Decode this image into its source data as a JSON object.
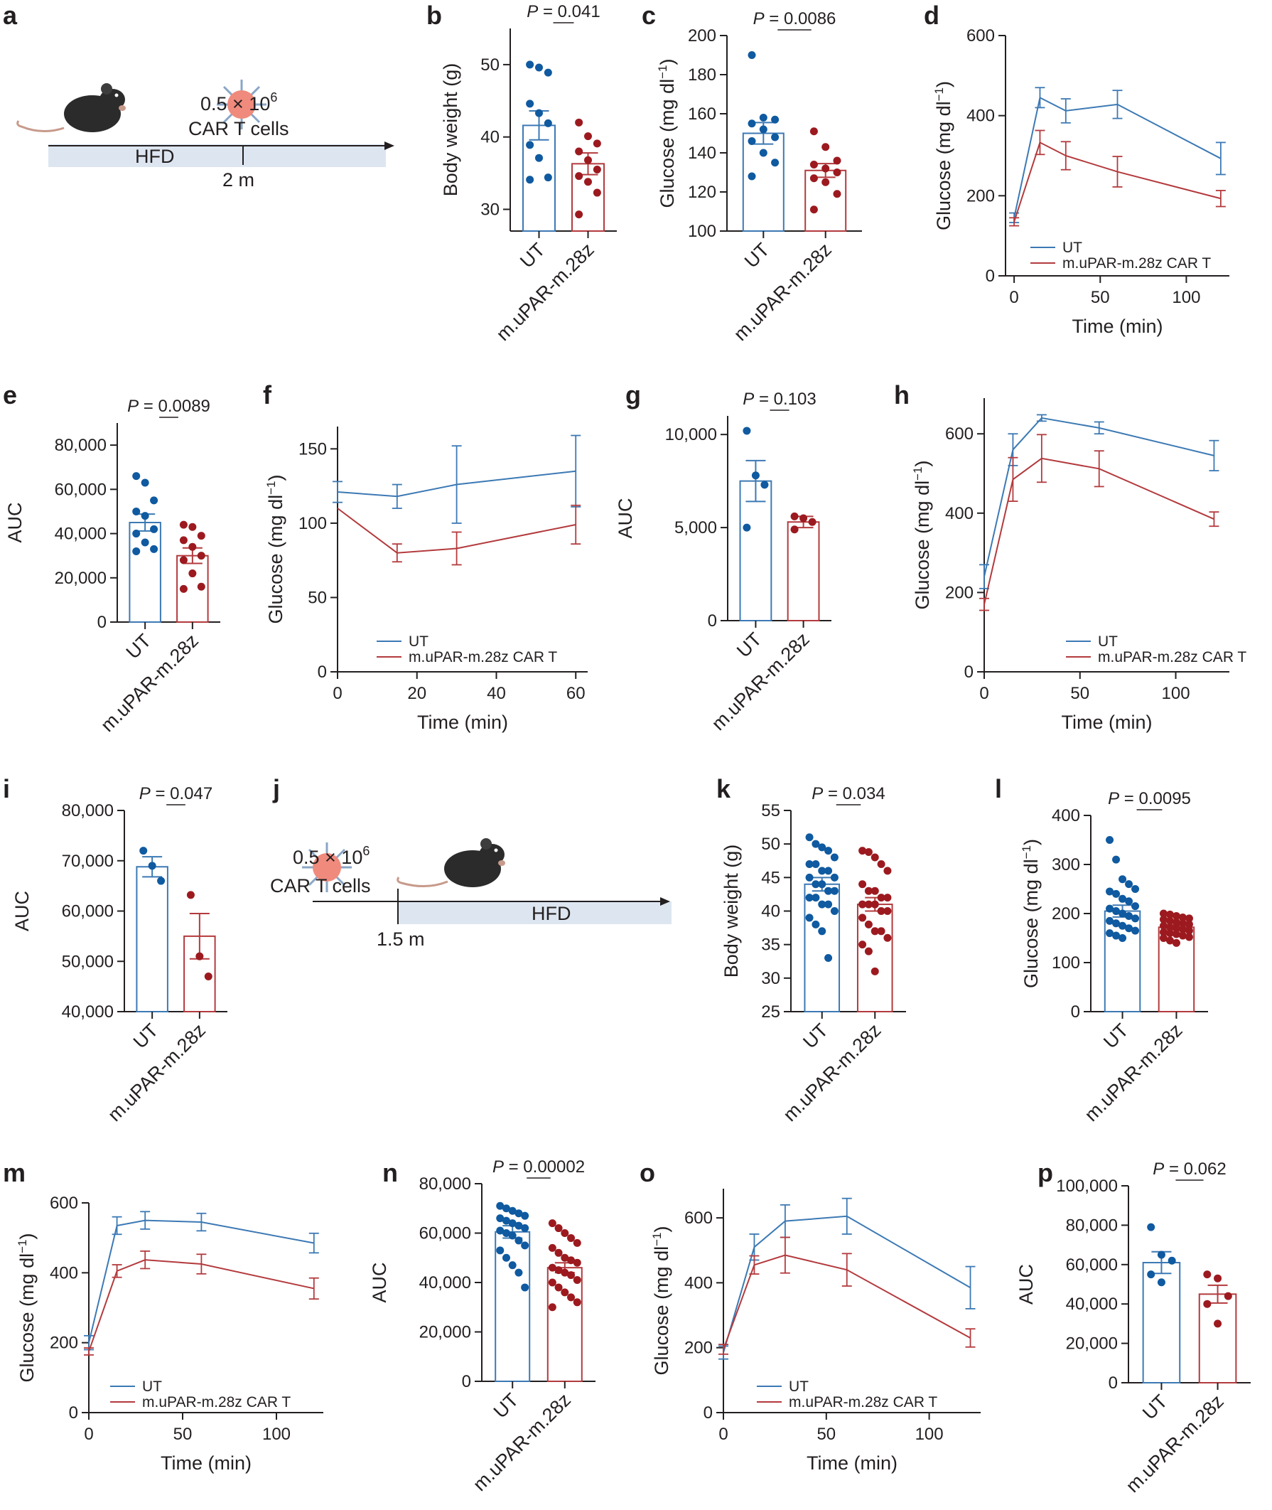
{
  "colors": {
    "ut": "#3c79b4",
    "car": "#b33a3d",
    "ut_dot": "#0f5aa0",
    "car_dot": "#9c1a1f",
    "hfd_bar": "#dde6f0",
    "cell": "#ef8a7c",
    "mouse": "#2b2b2b"
  },
  "icons": {
    "mouse": "mouse-icon",
    "car_t_cell": "car-t-cell-icon"
  },
  "schematic_a": {
    "panel": "a",
    "dose_main": "0.5 × 10",
    "dose_exp": "6",
    "cells": "CAR T cells",
    "hfd": "HFD",
    "time": "2 m"
  },
  "schematic_j": {
    "panel": "j",
    "dose_main": "0.5 × 10",
    "dose_exp": "6",
    "cells": "CAR T cells",
    "hfd": "HFD",
    "time": "1.5 m"
  },
  "chart_data": [
    {
      "id": "b",
      "panel": "b",
      "type": "bar",
      "ylabel": "Body weight (g)",
      "categories": [
        "UT",
        "m.uPAR-m.28z"
      ],
      "ylim": [
        27,
        55
      ],
      "yticks": [
        "30",
        "40",
        "50"
      ],
      "ytickvals": [
        30,
        40,
        50
      ],
      "series": [
        {
          "mean": 41.6,
          "sem": 2.0,
          "points": [
            50,
            49.6,
            48.9,
            44.6,
            43.3,
            41.9,
            38.9,
            37.1,
            34.4,
            34.1
          ]
        },
        {
          "mean": 36.3,
          "sem": 1.5,
          "points": [
            42.0,
            40.1,
            39.1,
            38.0,
            36.8,
            35.5,
            34.6,
            33.8,
            32.3,
            29.3
          ]
        }
      ],
      "p": "P = 0.041"
    },
    {
      "id": "c",
      "panel": "c",
      "type": "bar",
      "ylabel": "Glucose (mg dl⁻¹)",
      "categories": [
        "UT",
        "m.uPAR-m.28z"
      ],
      "ylim": [
        100,
        200
      ],
      "yticks": [
        "100",
        "120",
        "140",
        "160",
        "180",
        "200"
      ],
      "ytickvals": [
        100,
        120,
        140,
        160,
        180,
        200
      ],
      "series": [
        {
          "mean": 150,
          "sem": 5.5,
          "points": [
            190,
            158,
            157,
            155,
            152,
            148,
            146,
            140,
            135,
            128
          ]
        },
        {
          "mean": 131,
          "sem": 3.5,
          "points": [
            151,
            143,
            136,
            134,
            132,
            130,
            127,
            125,
            119,
            111
          ]
        }
      ],
      "p": "P = 0.0086"
    },
    {
      "id": "d",
      "panel": "d",
      "type": "line",
      "xlabel": "Time (min)",
      "ylabel": "Glucose (mg dl⁻¹)",
      "xlim": [
        -5,
        125
      ],
      "ylim": [
        0,
        600
      ],
      "xticks": [
        "0",
        "50",
        "100"
      ],
      "xtickvals": [
        0,
        50,
        100
      ],
      "yticks": [
        "0",
        "200",
        "400",
        "600"
      ],
      "ytickvals": [
        0,
        200,
        400,
        600
      ],
      "x": [
        0,
        15,
        30,
        60,
        120
      ],
      "series": [
        {
          "name": "UT",
          "values": [
            145,
            445,
            412,
            428,
            293
          ],
          "sem": [
            12,
            25,
            30,
            35,
            40
          ]
        },
        {
          "name": "m.uPAR-m.28z CAR T",
          "values": [
            135,
            333,
            300,
            260,
            193
          ],
          "sem": [
            10,
            30,
            35,
            38,
            20
          ]
        }
      ]
    },
    {
      "id": "e",
      "panel": "e",
      "type": "bar",
      "ylabel": "AUC",
      "categories": [
        "UT",
        "m.uPAR-m.28z"
      ],
      "ylim": [
        0,
        90000
      ],
      "yticks": [
        "0",
        "20,000",
        "40,000",
        "60,000",
        "80,000"
      ],
      "ytickvals": [
        0,
        20000,
        40000,
        60000,
        80000
      ],
      "series": [
        {
          "mean": 45000,
          "sem": 3800,
          "points": [
            66000,
            63000,
            55000,
            50000,
            48000,
            42000,
            40000,
            36000,
            33000,
            32000
          ]
        },
        {
          "mean": 30000,
          "sem": 3500,
          "points": [
            44000,
            43000,
            39000,
            37000,
            34000,
            30000,
            28000,
            22000,
            16000,
            15000
          ]
        }
      ],
      "p": "P = 0.0089"
    },
    {
      "id": "f",
      "panel": "f",
      "type": "line",
      "xlabel": "Time (min)",
      "ylabel": "Glucose (mg dl⁻¹)",
      "xlim": [
        0,
        63
      ],
      "ylim": [
        0,
        165
      ],
      "xticks": [
        "0",
        "20",
        "40",
        "60"
      ],
      "xtickvals": [
        0,
        20,
        40,
        60
      ],
      "yticks": [
        "0",
        "50",
        "100",
        "150"
      ],
      "ytickvals": [
        0,
        50,
        100,
        150
      ],
      "x": [
        0,
        15,
        30,
        60
      ],
      "series": [
        {
          "name": "UT",
          "values": [
            121,
            118,
            126,
            135
          ],
          "sem": [
            7,
            8,
            26,
            24
          ]
        },
        {
          "name": "m.uPAR-m.28z CAR T",
          "values": [
            110,
            80,
            83,
            99
          ],
          "sem": [
            0,
            6,
            11,
            13
          ]
        }
      ]
    },
    {
      "id": "g",
      "panel": "g",
      "type": "bar",
      "ylabel": "AUC",
      "categories": [
        "UT",
        "m.uPAR-m.28z"
      ],
      "ylim": [
        0,
        11000
      ],
      "yticks": [
        "0",
        "5,000",
        "10,000"
      ],
      "ytickvals": [
        0,
        5000,
        10000
      ],
      "series": [
        {
          "mean": 7500,
          "sem": 1100,
          "points": [
            10200,
            7800,
            7300,
            5000
          ]
        },
        {
          "mean": 5300,
          "sem": 300,
          "points": [
            5600,
            5500,
            5300,
            4900
          ]
        }
      ],
      "p": "P = 0.103"
    },
    {
      "id": "h",
      "panel": "h",
      "type": "line",
      "xlabel": "Time (min)",
      "ylabel": "Glucose (mg dl⁻¹)",
      "xlim": [
        0,
        128
      ],
      "ylim": [
        0,
        690
      ],
      "xticks": [
        "0",
        "50",
        "100"
      ],
      "xtickvals": [
        0,
        50,
        100
      ],
      "yticks": [
        "0",
        "200",
        "400",
        "600"
      ],
      "ytickvals": [
        0,
        200,
        400,
        600
      ],
      "x": [
        0,
        15,
        30,
        60,
        120
      ],
      "series": [
        {
          "name": "UT",
          "values": [
            240,
            560,
            640,
            615,
            545
          ],
          "sem": [
            30,
            40,
            8,
            15,
            38
          ]
        },
        {
          "name": "m.uPAR-m.28z CAR T",
          "values": [
            170,
            485,
            538,
            512,
            385
          ],
          "sem": [
            15,
            55,
            60,
            45,
            18
          ]
        }
      ]
    },
    {
      "id": "i",
      "panel": "i",
      "type": "bar",
      "ylabel": "AUC",
      "categories": [
        "UT",
        "m.uPAR-m.28z"
      ],
      "ylim": [
        40000,
        80000
      ],
      "yticks": [
        "40,000",
        "50,000",
        "60,000",
        "70,000",
        "80,000"
      ],
      "ytickvals": [
        40000,
        50000,
        60000,
        70000,
        80000
      ],
      "series": [
        {
          "mean": 68800,
          "sem": 2000,
          "points": [
            72000,
            69000,
            66000
          ]
        },
        {
          "mean": 55000,
          "sem": 4500,
          "points": [
            63200,
            51000,
            47000
          ]
        }
      ],
      "p": "P = 0.047"
    },
    {
      "id": "k",
      "panel": "k",
      "type": "bar",
      "ylabel": "Body weight (g)",
      "categories": [
        "UT",
        "m.uPAR-m.28z"
      ],
      "ylim": [
        25,
        55
      ],
      "yticks": [
        "25",
        "30",
        "35",
        "40",
        "45",
        "50",
        "55"
      ],
      "ytickvals": [
        25,
        30,
        35,
        40,
        45,
        50,
        55
      ],
      "series": [
        {
          "mean": 44,
          "sem": 1.0,
          "points": [
            51,
            50,
            49.5,
            49,
            48,
            47,
            47,
            46,
            46,
            45,
            45,
            44,
            44,
            43,
            43,
            42,
            42,
            41,
            41,
            40,
            39,
            38,
            37,
            33
          ]
        },
        {
          "mean": 41,
          "sem": 1.0,
          "points": [
            49,
            48.8,
            48,
            47,
            46,
            44,
            43,
            43,
            42,
            42,
            41,
            41,
            41,
            40,
            40,
            39,
            38,
            37,
            37,
            36,
            35,
            34,
            31
          ]
        }
      ],
      "p": "P = 0.034"
    },
    {
      "id": "l",
      "panel": "l",
      "type": "bar",
      "ylabel": "Glucose (mg dl⁻¹)",
      "categories": [
        "UT",
        "m.uPAR-m.28z"
      ],
      "ylim": [
        0,
        400
      ],
      "yticks": [
        "0",
        "100",
        "200",
        "300",
        "400"
      ],
      "ytickvals": [
        0,
        100,
        200,
        300,
        400
      ],
      "series": [
        {
          "mean": 205,
          "sem": 12,
          "points": [
            350,
            310,
            270,
            260,
            250,
            245,
            240,
            230,
            225,
            215,
            210,
            205,
            200,
            195,
            190,
            185,
            180,
            175,
            170,
            165,
            160,
            155,
            150
          ]
        },
        {
          "mean": 172,
          "sem": 4,
          "points": [
            200,
            198,
            195,
            192,
            190,
            188,
            185,
            182,
            180,
            178,
            175,
            172,
            170,
            168,
            165,
            162,
            160,
            158,
            155,
            152,
            150,
            145,
            140
          ]
        }
      ],
      "p": "P = 0.0095"
    },
    {
      "id": "m",
      "panel": "m",
      "type": "line",
      "xlabel": "Time (min)",
      "ylabel": "Glucose (mg dl⁻¹)",
      "xlim": [
        0,
        125
      ],
      "ylim": [
        0,
        600
      ],
      "xticks": [
        "0",
        "50",
        "100"
      ],
      "xtickvals": [
        0,
        50,
        100
      ],
      "yticks": [
        "0",
        "200",
        "400",
        "600"
      ],
      "ytickvals": [
        0,
        200,
        400,
        600
      ],
      "x": [
        0,
        15,
        30,
        60,
        120
      ],
      "series": [
        {
          "name": "UT",
          "values": [
            200,
            535,
            550,
            545,
            485
          ],
          "sem": [
            20,
            25,
            25,
            25,
            28
          ]
        },
        {
          "name": "m.uPAR-m.28z CAR T",
          "values": [
            175,
            405,
            437,
            425,
            355
          ],
          "sem": [
            10,
            18,
            25,
            28,
            30
          ]
        }
      ]
    },
    {
      "id": "n",
      "panel": "n",
      "type": "bar",
      "ylabel": "AUC",
      "categories": [
        "UT",
        "m.uPAR-m.28z"
      ],
      "ylim": [
        0,
        80000
      ],
      "yticks": [
        "0",
        "20,000",
        "40,000",
        "60,000",
        "80,000"
      ],
      "ytickvals": [
        0,
        20000,
        40000,
        60000,
        80000
      ],
      "series": [
        {
          "mean": 60500,
          "sem": 2500,
          "points": [
            71000,
            70000,
            69000,
            68000,
            67000,
            66000,
            65000,
            64000,
            63000,
            62000,
            61000,
            60000,
            59000,
            57000,
            55000,
            53000,
            50000,
            47000,
            44000,
            38000
          ]
        },
        {
          "mean": 46000,
          "sem": 2000,
          "points": [
            64000,
            62000,
            60000,
            58000,
            56000,
            54000,
            52000,
            50000,
            49000,
            48000,
            46000,
            45000,
            44000,
            43000,
            41000,
            40000,
            38000,
            36000,
            34000,
            32000,
            30000
          ]
        }
      ],
      "p": "P = 0.00002"
    },
    {
      "id": "o",
      "panel": "o",
      "type": "line",
      "xlabel": "Time (min)",
      "ylabel": "Glucose (mg dl⁻¹)",
      "xlim": [
        0,
        125
      ],
      "ylim": [
        0,
        690
      ],
      "xticks": [
        "0",
        "50",
        "100"
      ],
      "xtickvals": [
        0,
        50,
        100
      ],
      "yticks": [
        "0",
        "200",
        "400",
        "600"
      ],
      "ytickvals": [
        0,
        200,
        400,
        600
      ],
      "x": [
        0,
        15,
        30,
        60,
        120
      ],
      "series": [
        {
          "name": "UT",
          "values": [
            185,
            510,
            590,
            605,
            385
          ],
          "sem": [
            20,
            40,
            50,
            55,
            65
          ]
        },
        {
          "name": "m.uPAR-m.28z CAR T",
          "values": [
            195,
            455,
            485,
            440,
            230
          ],
          "sem": [
            15,
            28,
            55,
            50,
            28
          ]
        }
      ]
    },
    {
      "id": "p",
      "panel": "p",
      "type": "bar",
      "ylabel": "AUC",
      "categories": [
        "UT",
        "m.uPAR-m.28z"
      ],
      "ylim": [
        0,
        100000
      ],
      "yticks": [
        "0",
        "20,000",
        "40,000",
        "60,000",
        "80,000",
        "100,000"
      ],
      "ytickvals": [
        0,
        20000,
        40000,
        60000,
        80000,
        100000
      ],
      "series": [
        {
          "mean": 61000,
          "sem": 5500,
          "points": [
            79000,
            65000,
            62000,
            55000,
            51000
          ]
        },
        {
          "mean": 45000,
          "sem": 4500,
          "points": [
            55000,
            53000,
            44000,
            40000,
            30000
          ]
        }
      ],
      "p": "P = 0.062"
    }
  ]
}
